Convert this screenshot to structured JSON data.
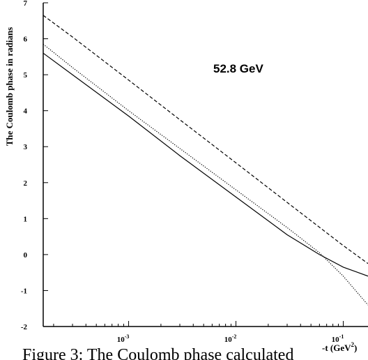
{
  "chart_data": {
    "type": "line",
    "title": "",
    "annotation": "52.8 GeV",
    "ylabel": "The Coulomb phase in radians",
    "xlabel": "-t (GeV",
    "xlabel_sup": "2",
    "xlabel_close": ")",
    "xscale": "log",
    "xlim": [
      0.00016,
      0.17
    ],
    "ylim": [
      -2,
      7
    ],
    "yticks": [
      -2,
      -1,
      0,
      1,
      2,
      3,
      4,
      5,
      6,
      7
    ],
    "xticks": [
      {
        "value": 0.001,
        "base": "10",
        "exp": "-3"
      },
      {
        "value": 0.01,
        "base": "10",
        "exp": "-2"
      },
      {
        "value": 0.1,
        "base": "10",
        "exp": "-1"
      }
    ],
    "grid": false,
    "series": [
      {
        "style": "dashed",
        "color": "#000000",
        "x": [
          0.00016,
          0.0003,
          0.001,
          0.003,
          0.01,
          0.03,
          0.1,
          0.17
        ],
        "y": [
          6.65,
          6.05,
          4.85,
          3.75,
          2.55,
          1.45,
          0.25,
          -0.25
        ]
      },
      {
        "style": "solid",
        "color": "#000000",
        "x": [
          0.00016,
          0.0003,
          0.001,
          0.003,
          0.01,
          0.03,
          0.06,
          0.1,
          0.17
        ],
        "y": [
          5.6,
          5.0,
          3.85,
          2.75,
          1.6,
          0.55,
          0.0,
          -0.35,
          -0.6
        ]
      },
      {
        "style": "dotted",
        "color": "#000000",
        "x": [
          0.00016,
          0.0003,
          0.001,
          0.003,
          0.01,
          0.03,
          0.06,
          0.1,
          0.13,
          0.17
        ],
        "y": [
          5.85,
          5.2,
          4.0,
          2.95,
          1.8,
          0.75,
          0.05,
          -0.6,
          -1.0,
          -1.4
        ]
      }
    ]
  },
  "caption": "Figure 3: The Coulomb phase calculated"
}
